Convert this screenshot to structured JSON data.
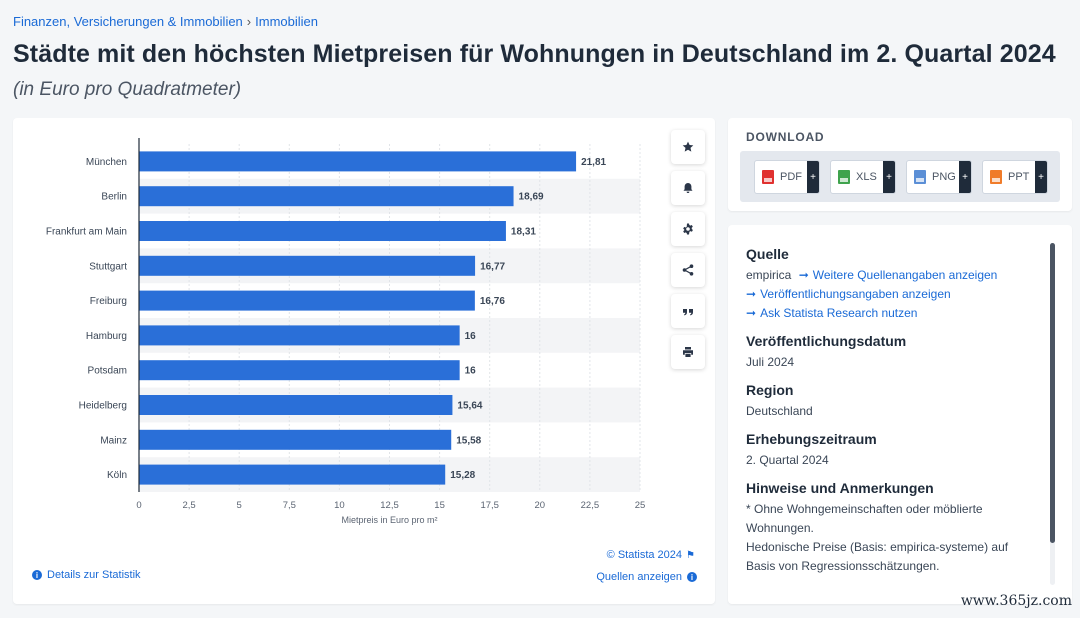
{
  "breadcrumb": [
    "Finanzen, Versicherungen & Immobilien",
    "Immobilien"
  ],
  "page": {
    "title": "Städte mit den höchsten Mietpreisen für Wohnungen in Deutschland im 2. Quartal 2024",
    "subtitle": "(in Euro pro Quadratmeter)"
  },
  "chart_data": {
    "type": "bar",
    "orientation": "horizontal",
    "categories": [
      "München",
      "Berlin",
      "Frankfurt am Main",
      "Stuttgart",
      "Freiburg",
      "Hamburg",
      "Potsdam",
      "Heidelberg",
      "Mainz",
      "Köln"
    ],
    "values": [
      21.81,
      18.69,
      18.31,
      16.77,
      16.76,
      16,
      16,
      15.64,
      15.58,
      15.28
    ],
    "value_labels": [
      "21,81",
      "18,69",
      "18,31",
      "16,77",
      "16,76",
      "16",
      "16",
      "15,64",
      "15,58",
      "15,28"
    ],
    "xticks": [
      0,
      2.5,
      5,
      7.5,
      10,
      12.5,
      15,
      17.5,
      20,
      22.5,
      25
    ],
    "xtick_labels": [
      "0",
      "2,5",
      "5",
      "7,5",
      "10",
      "12,5",
      "15",
      "17,5",
      "20",
      "22,5",
      "25"
    ],
    "xlim": [
      0,
      25
    ],
    "xlabel": "Mietpreis in Euro pro m²",
    "ylabel": "",
    "bar_color": "#2a6fd8",
    "grid": true
  },
  "chart_card": {
    "tools": [
      {
        "name": "star-icon"
      },
      {
        "name": "bell-icon"
      },
      {
        "name": "gear-icon"
      },
      {
        "name": "share-icon"
      },
      {
        "name": "quote-icon"
      },
      {
        "name": "print-icon"
      }
    ],
    "credit": "© Statista 2024",
    "details_link": "Details zur Statistik",
    "sources_link": "Quellen anzeigen"
  },
  "download": {
    "heading": "DOWNLOAD",
    "buttons": [
      {
        "label": "PDF",
        "color": "#e0312f"
      },
      {
        "label": "XLS",
        "color": "#3fa34d"
      },
      {
        "label": "PNG",
        "color": "#5b8fd6"
      },
      {
        "label": "PPT",
        "color": "#f07c2a"
      }
    ],
    "plus": "+"
  },
  "info": {
    "source_heading": "Quelle",
    "source_name": "empirica",
    "source_more": "Weitere Quellenangaben anzeigen",
    "publication_link": "Veröffentlichungsangaben anzeigen",
    "research_link": "Ask Statista Research nutzen",
    "pubdate_heading": "Veröffentlichungsdatum",
    "pubdate": "Juli 2024",
    "region_heading": "Region",
    "region": "Deutschland",
    "period_heading": "Erhebungszeitraum",
    "period": "2. Quartal 2024",
    "notes_heading": "Hinweise und Anmerkungen",
    "note1": "* Ohne Wohngemeinschaften oder möblierte Wohnungen.",
    "note2": "Hedonische Preise (Basis: empirica-systeme) auf Basis von Regressionsschätzungen."
  },
  "watermark": "www.365jz.com"
}
